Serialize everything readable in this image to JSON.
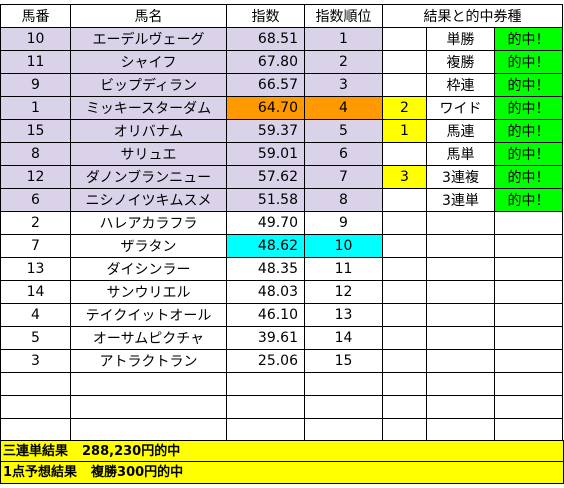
{
  "headers": [
    "馬番",
    "馬名",
    "指数",
    "指数順位",
    "結果と的中券種"
  ],
  "rows": [
    {
      "no": "10",
      "name": "エーデルヴェーグ",
      "score": "68.51",
      "rank": "1"
    },
    {
      "no": "11",
      "name": "シャイフ",
      "score": "67.80",
      "rank": "2"
    },
    {
      "no": "9",
      "name": "ビップディラン",
      "score": "66.57",
      "rank": "3"
    },
    {
      "no": "1",
      "name": "ミッキースターダム",
      "score": "64.70",
      "rank": "4"
    },
    {
      "no": "15",
      "name": "オリバナム",
      "score": "59.37",
      "rank": "5"
    },
    {
      "no": "8",
      "name": "サリュエ",
      "score": "59.01",
      "rank": "6"
    },
    {
      "no": "12",
      "name": "ダノンブランニュー",
      "score": "57.62",
      "rank": "7"
    },
    {
      "no": "6",
      "name": "ニシノイツキムスメ",
      "score": "51.58",
      "rank": "8"
    },
    {
      "no": "2",
      "name": "ハレアカラフラ",
      "score": "49.70",
      "rank": "9"
    },
    {
      "no": "7",
      "name": "ザラタン",
      "score": "48.62",
      "rank": "10"
    },
    {
      "no": "13",
      "name": "ダイシンラー",
      "score": "48.35",
      "rank": "11"
    },
    {
      "no": "14",
      "name": "サンウリエル",
      "score": "48.03",
      "rank": "12"
    },
    {
      "no": "4",
      "name": "テイクイットオール",
      "score": "46.10",
      "rank": "13"
    },
    {
      "no": "5",
      "name": "オーサムピクチャ",
      "score": "39.61",
      "rank": "14"
    },
    {
      "no": "3",
      "name": "アトラクトラン",
      "score": "25.06",
      "rank": "15"
    }
  ],
  "results": [
    {
      "finish": "",
      "bet": "単勝",
      "hit": "的中！"
    },
    {
      "finish": "",
      "bet": "複勝",
      "hit": "的中！"
    },
    {
      "finish": "",
      "bet": "枠連",
      "hit": "的中！"
    },
    {
      "finish": "2",
      "bet": "ワイド",
      "hit": "的中！"
    },
    {
      "finish": "1",
      "bet": "馬連",
      "hit": "的中！"
    },
    {
      "finish": "",
      "bet": "馬単",
      "hit": "的中！"
    },
    {
      "finish": "3",
      "bet": "3連複",
      "hit": "的中！"
    },
    {
      "finish": "",
      "bet": "3連単",
      "hit": "的中！"
    }
  ],
  "summary": {
    "line1_label": "三連単結果",
    "line1_value": "288,230円的中",
    "line2_label": "1点予想結果",
    "line2_value": "複勝300円的中"
  },
  "colors": {
    "lavender": "#d9d2e9",
    "orange": "#ff9900",
    "cyan": "#00ffff",
    "yellow": "#ffff00",
    "green": "#00ff00"
  }
}
